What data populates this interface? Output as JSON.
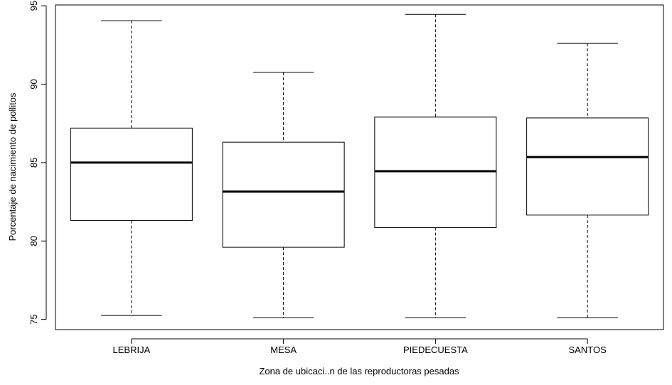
{
  "chart_data": {
    "type": "boxplot",
    "title": "",
    "xlabel": "Zona de ubicaci..n de las reproductoras pesadas",
    "ylabel": "Porcentaje de nacimiento de pollitos",
    "ylim": [
      74.35,
      95.05
    ],
    "yticks": [
      75,
      80,
      85,
      90,
      95
    ],
    "grid": false,
    "categories": [
      "LEBRIJA",
      "MESA",
      "PIEDECUESTA",
      "SANTOS"
    ],
    "boxes": [
      {
        "category": "LEBRIJA",
        "min": 75.25,
        "q1": 81.3,
        "median": 85.0,
        "q3": 87.2,
        "max": 94.05
      },
      {
        "category": "MESA",
        "min": 75.1,
        "q1": 79.6,
        "median": 83.15,
        "q3": 86.3,
        "max": 90.75
      },
      {
        "category": "PIEDECUESTA",
        "min": 75.1,
        "q1": 80.85,
        "median": 84.45,
        "q3": 87.9,
        "max": 94.45
      },
      {
        "category": "SANTOS",
        "min": 75.1,
        "q1": 81.65,
        "median": 85.35,
        "q3": 87.85,
        "max": 92.6
      }
    ]
  }
}
